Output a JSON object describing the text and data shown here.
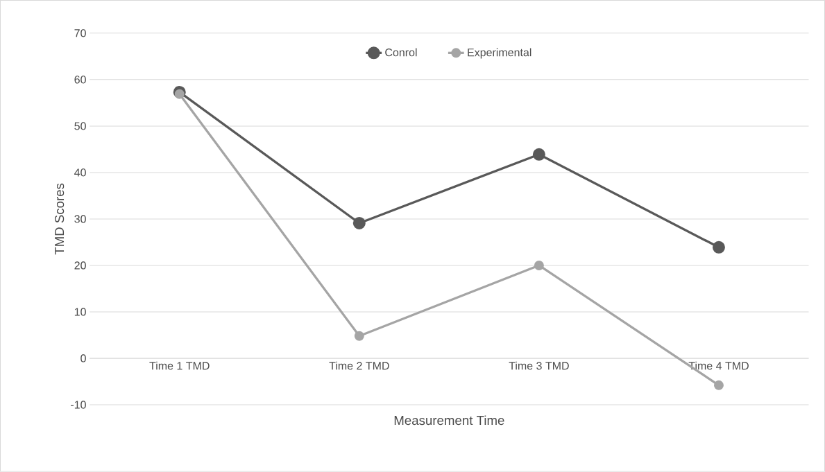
{
  "chart_data": {
    "type": "line",
    "xlabel": "Measurement Time",
    "ylabel": "TMD Scores",
    "categories": [
      "Time 1 TMD",
      "Time 2 TMD",
      "Time 3 TMD",
      "Time 4 TMD"
    ],
    "series": [
      {
        "name": "Conrol",
        "color": "#595959",
        "values": [
          57.3,
          29.1,
          43.9,
          23.9
        ]
      },
      {
        "name": "Experimental",
        "color": "#a5a5a5",
        "values": [
          56.9,
          4.8,
          20,
          -5.8
        ]
      }
    ],
    "ylim": [
      -10,
      70
    ],
    "yticks": [
      -10,
      0,
      10,
      20,
      30,
      40,
      50,
      60,
      70
    ],
    "grid": "y",
    "legend": "top",
    "marker": "circle",
    "line_style": "solid"
  }
}
